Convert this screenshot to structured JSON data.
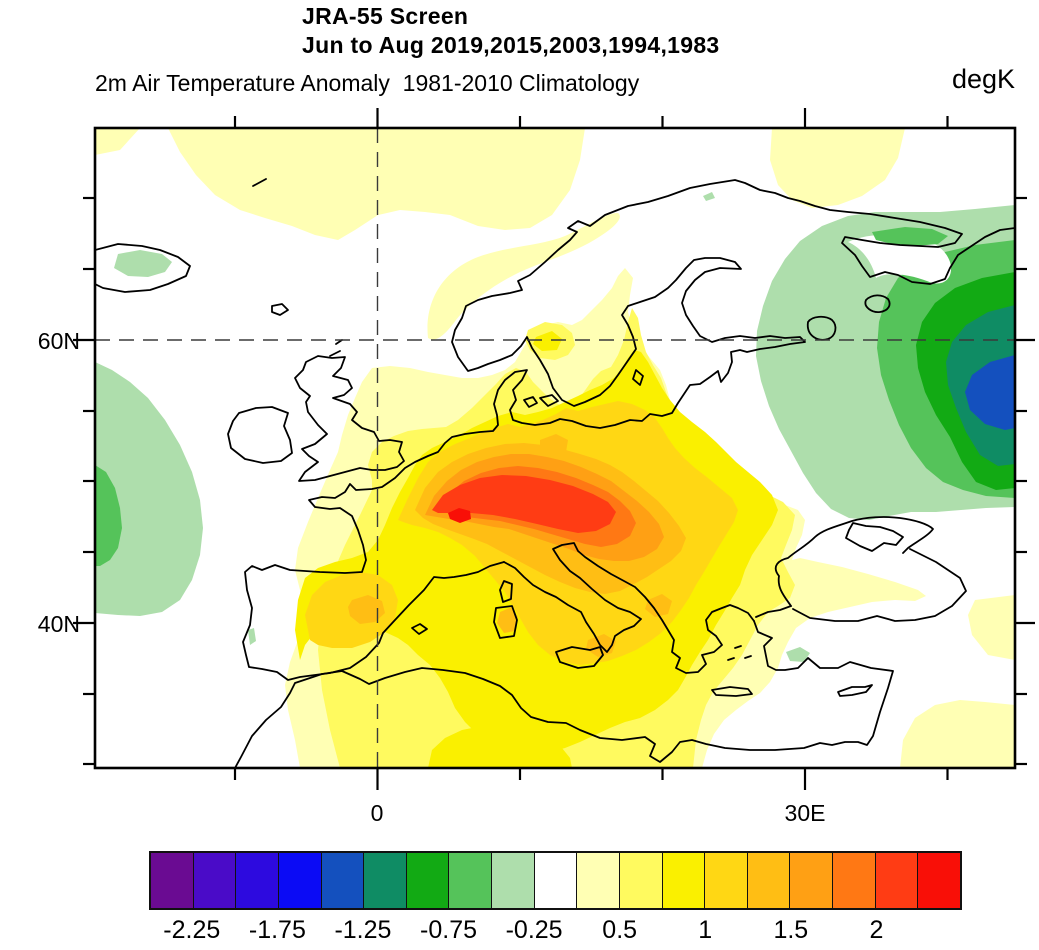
{
  "header": {
    "title_line1": "JRA-55 Screen",
    "title_line2": "Jun to Aug 2019,2015,2003,1994,1983",
    "subtitle": "2m Air Temperature Anomaly  1981-2010 Climatology",
    "units": "degK"
  },
  "axes": {
    "lat": {
      "label_60": "60N",
      "label_40": "40N"
    },
    "lon": {
      "label_0": "0",
      "label_30": "30E"
    }
  },
  "colorbar": {
    "colors": [
      "#6A0B92",
      "#4A0BC8",
      "#2D0ADF",
      "#0B0BF5",
      "#1450BE",
      "#0F8C64",
      "#12AA14",
      "#55C35A",
      "#AEDEAC",
      "#FFFFFF",
      "#FFFFB4",
      "#FFFA5F",
      "#FAF000",
      "#FFD714",
      "#FFBE14",
      "#FFA014",
      "#FF7814",
      "#FF3C14",
      "#F90F07"
    ],
    "labels": [
      "-2.25",
      "-1.75",
      "-1.25",
      "-0.75",
      "-0.25",
      "0.5",
      "1",
      "1.5",
      "2"
    ]
  },
  "chart_data": {
    "type": "heatmap",
    "subtype": "filled_contour_map",
    "title": "JRA-55 Screen",
    "subtitle": "Jun to Aug 2019,2015,2003,1994,1983",
    "variable": "2m Air Temperature Anomaly",
    "climatology": "1981-2010 Climatology",
    "units": "degK",
    "season": "Jun to Aug",
    "composite_years": [
      2019,
      2015,
      2003,
      1994,
      1983
    ],
    "projection": "equirectangular",
    "lon_range": [
      -20,
      45
    ],
    "lat_range": [
      30,
      75
    ],
    "lat_tick_interval_deg": 5,
    "lon_tick_interval_deg": 10,
    "labeled_ticks": {
      "lat": [
        "60N",
        "40N"
      ],
      "lon": [
        "0",
        "30E"
      ]
    },
    "gridlines": {
      "lat": [
        60
      ],
      "lon": [
        0
      ],
      "style": "dashed"
    },
    "contour_levels": [
      -2.25,
      -2,
      -1.75,
      -1.5,
      -1.25,
      -1,
      -0.75,
      -0.5,
      -0.25,
      0.25,
      0.5,
      0.75,
      1,
      1.25,
      1.5,
      1.75,
      2,
      2.25
    ],
    "anomaly_features": [
      {
        "feature": "warm maximum",
        "location": "central Europe near 48N, 5-15E (France/Germany/Alps)",
        "value_degK": "> 2.25"
      },
      {
        "feature": "warm region > 1.5",
        "location": "France to Hungary, northern Italy"
      },
      {
        "feature": "warm region 1 to 1.5",
        "location": "Iberia interior, Denmark/Baltic coast, Italy, Balkans, Sardinia, Sicily, Greece"
      },
      {
        "feature": "warm region 0.25 to 1",
        "location": "most of Europe, western Mediterranean, North Africa coast, southern Scandinavia, western Black Sea, Arctic band near 72-75N"
      },
      {
        "feature": "cold minimum",
        "location": "western Russia near 56N, 42E",
        "value_degK": "-1.5 to -1.25"
      },
      {
        "feature": "cool region -1 to -0.25",
        "location": "northwest Russia, Karelia, Kola Peninsula"
      },
      {
        "feature": "cool patch -0.75 to -0.25",
        "location": "North Atlantic near 20W, 43-59N"
      },
      {
        "feature": "cool patch -0.5 to -0.25",
        "location": "Iceland interior, western Turkey (small)"
      },
      {
        "feature": "near-zero (white)",
        "location": "Ireland, northern Scandinavia, Finland, eastern Black Sea, eastern Turkey, open Atlantic"
      }
    ]
  }
}
